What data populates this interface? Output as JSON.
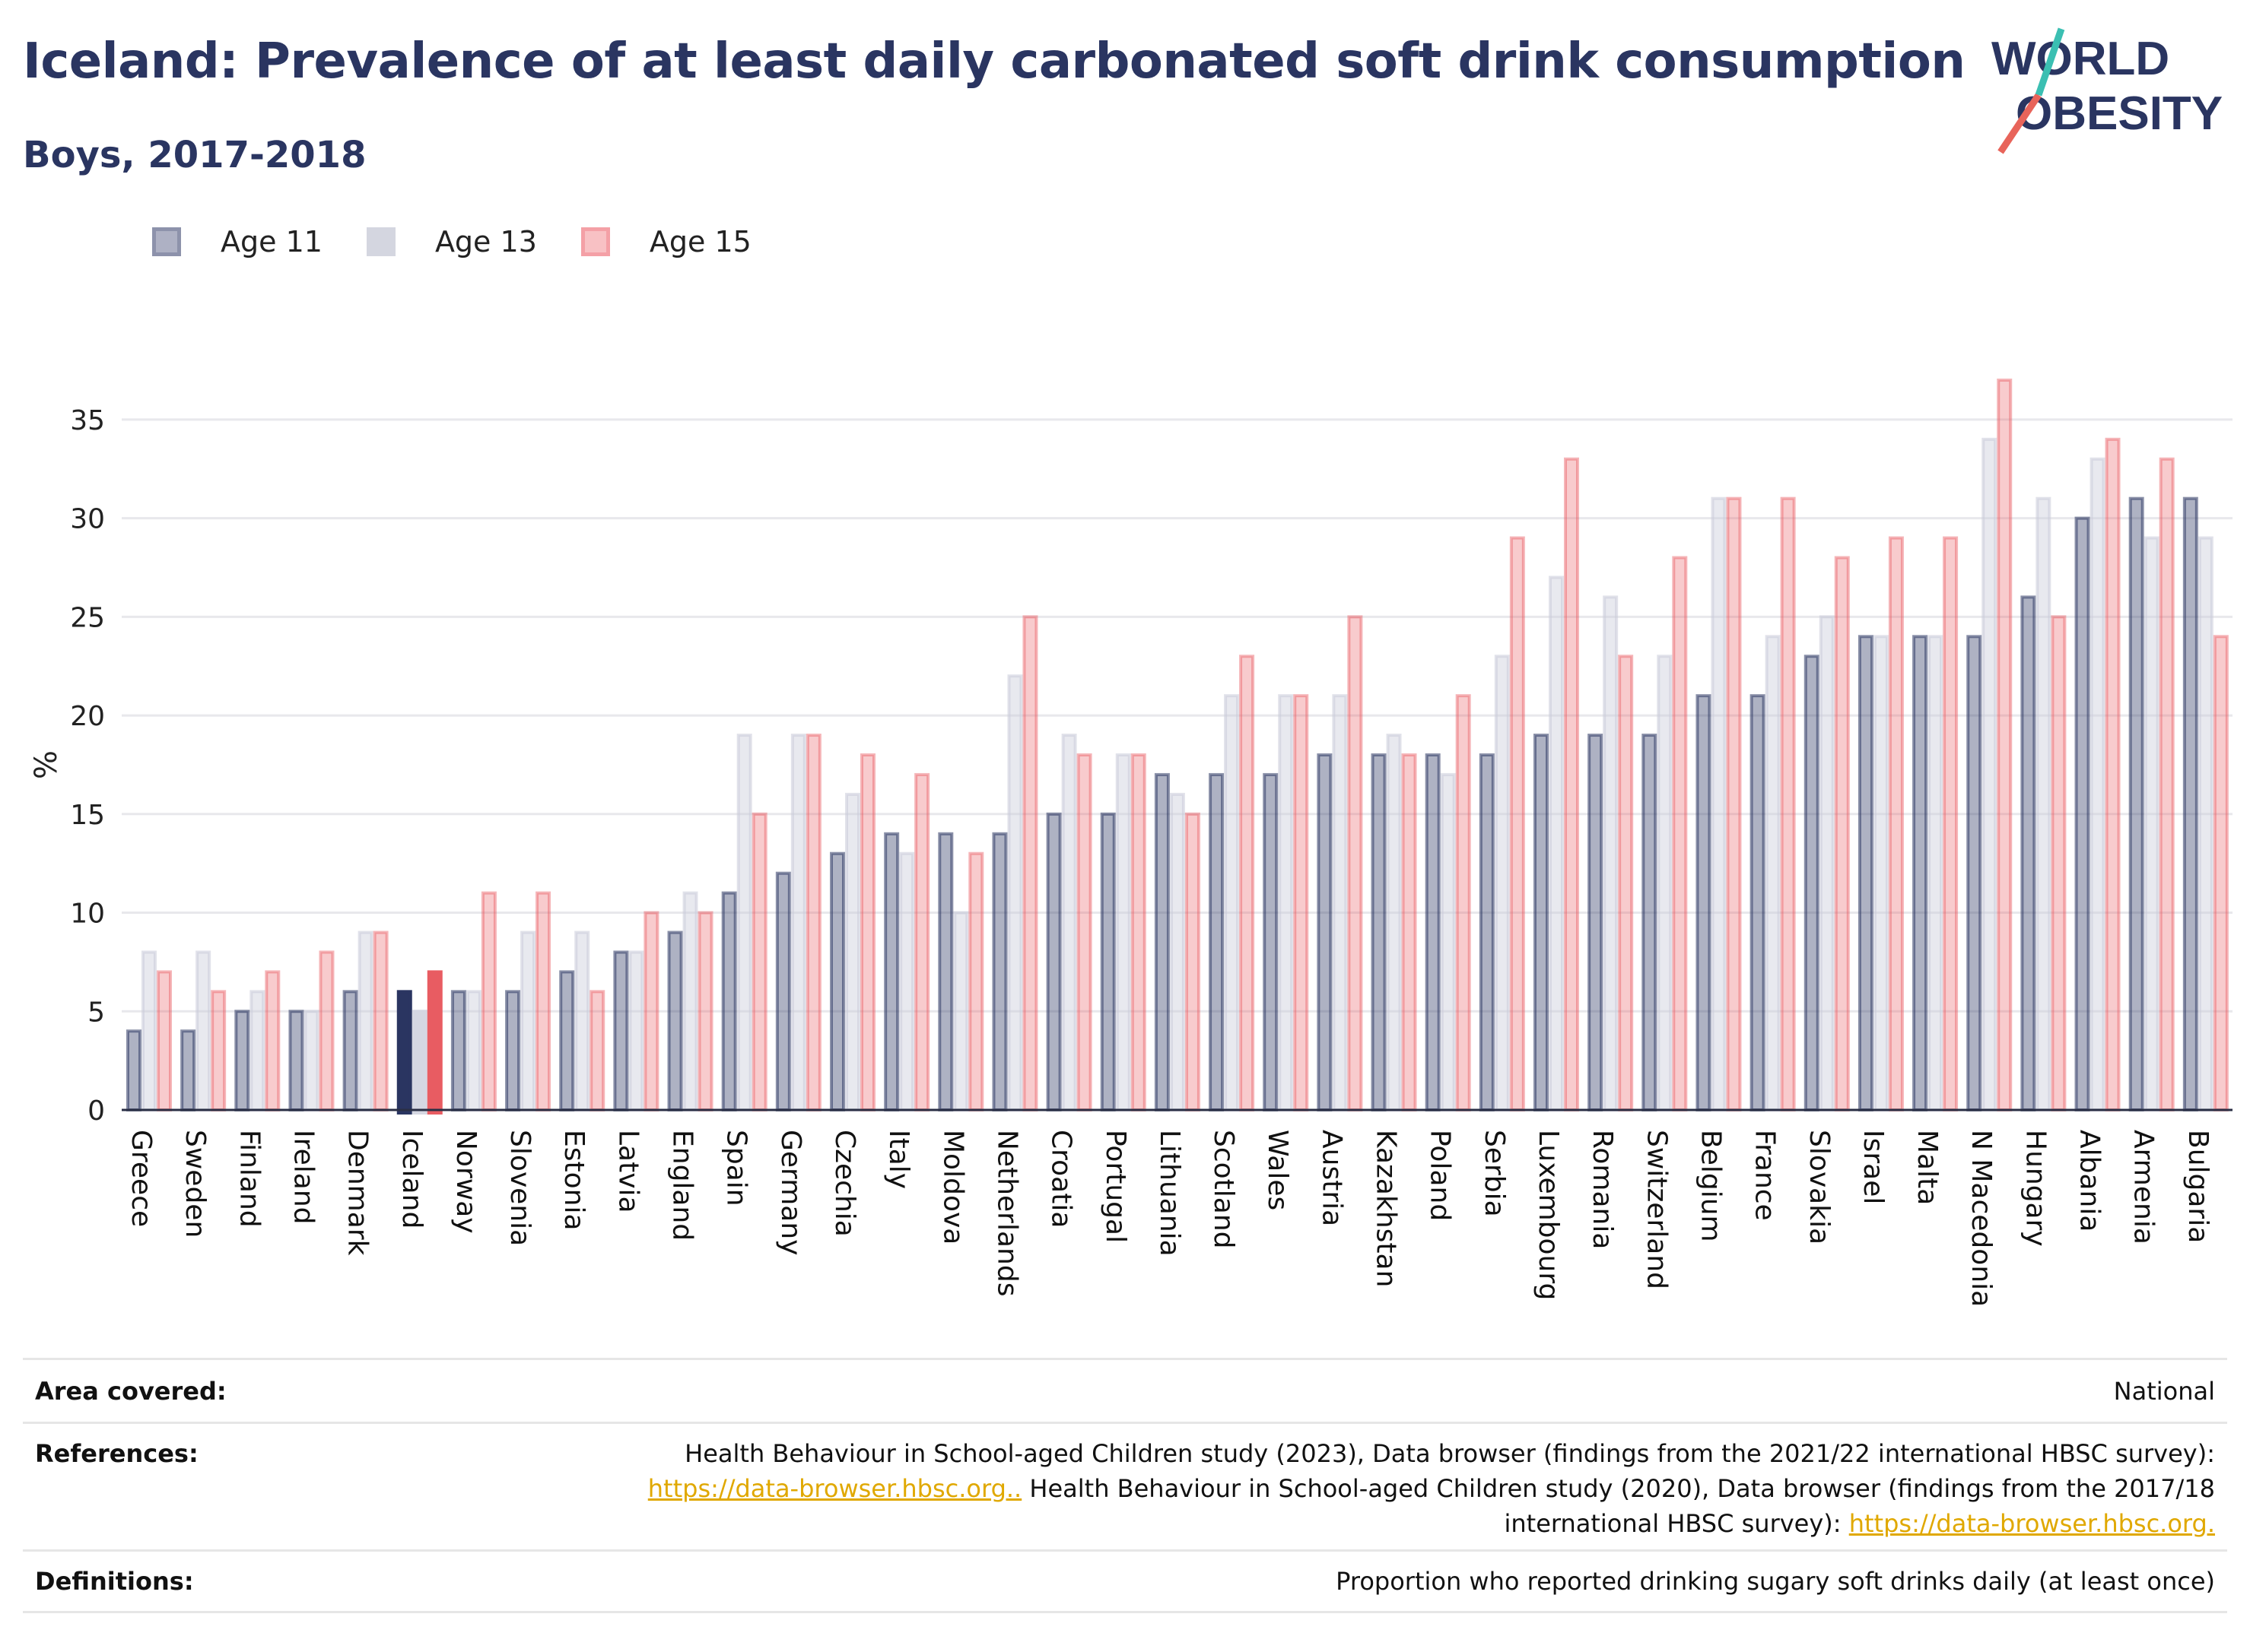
{
  "header": {
    "title": "Iceland: Prevalence of at least daily carbonated soft drink consumption",
    "subtitle": "Boys, 2017-2018"
  },
  "logo": {
    "line1": "WORLD",
    "line2": "OBESITY"
  },
  "colors": {
    "age11": "#2a3561",
    "age13": "#c8cad8",
    "age15": "#e85c62",
    "title": "#2a3561",
    "link": "#e0a800"
  },
  "legend": [
    {
      "label": "Age 11",
      "color": "#8d92ab"
    },
    {
      "label": "Age 13",
      "color": "#c8cad8"
    },
    {
      "label": "Age 15",
      "color": "#f4a0a6"
    }
  ],
  "chart_data": {
    "type": "bar",
    "title": "Iceland: Prevalence of at least daily carbonated soft drink consumption",
    "subtitle": "Boys, 2017-2018",
    "xlabel": "",
    "ylabel": "%",
    "ylim": [
      0,
      37
    ],
    "yticks": [
      0,
      5,
      10,
      15,
      20,
      25,
      30,
      35
    ],
    "grid": true,
    "legend_position": "top-left",
    "highlight": "Iceland",
    "categories": [
      "Greece",
      "Sweden",
      "Finland",
      "Ireland",
      "Denmark",
      "Iceland",
      "Norway",
      "Slovenia",
      "Estonia",
      "Latvia",
      "England",
      "Spain",
      "Germany",
      "Czechia",
      "Italy",
      "Moldova",
      "Netherlands",
      "Croatia",
      "Portugal",
      "Lithuania",
      "Scotland",
      "Wales",
      "Austria",
      "Kazakhstan",
      "Poland",
      "Serbia",
      "Luxembourg",
      "Romania",
      "Switzerland",
      "Belgium",
      "France",
      "Slovakia",
      "Israel",
      "Malta",
      "N Macedonia",
      "Hungary",
      "Albania",
      "Armenia",
      "Bulgaria"
    ],
    "series": [
      {
        "name": "Age 11",
        "values": [
          4,
          4,
          5,
          5,
          6,
          6,
          6,
          6,
          7,
          8,
          9,
          11,
          12,
          13,
          14,
          14,
          14,
          15,
          15,
          17,
          17,
          17,
          18,
          18,
          18,
          18,
          19,
          19,
          19,
          21,
          21,
          23,
          24,
          24,
          24,
          26,
          30,
          31,
          31
        ]
      },
      {
        "name": "Age 13",
        "values": [
          8,
          8,
          6,
          5,
          9,
          5,
          6,
          9,
          9,
          8,
          11,
          19,
          19,
          16,
          13,
          10,
          22,
          19,
          18,
          16,
          21,
          21,
          21,
          19,
          17,
          23,
          27,
          26,
          23,
          31,
          24,
          25,
          24,
          24,
          34,
          31,
          33,
          29,
          29
        ]
      },
      {
        "name": "Age 15",
        "values": [
          7,
          6,
          7,
          8,
          9,
          7,
          11,
          11,
          6,
          10,
          10,
          15,
          19,
          18,
          17,
          13,
          25,
          18,
          18,
          15,
          23,
          21,
          25,
          18,
          21,
          29,
          33,
          23,
          28,
          31,
          31,
          28,
          29,
          29,
          37,
          25,
          34,
          33,
          24
        ]
      }
    ]
  },
  "footer": {
    "area_label": "Area covered:",
    "area_value": "National",
    "references_label": "References:",
    "ref_text1": "Health Behaviour in School-aged Children study (2023), Data browser (findings from the 2021/22 international HBSC survey):",
    "ref_link1": "https://data-browser.hbsc.org..",
    "ref_text2": " Health Behaviour in School-aged Children study (2020), Data browser (findings from the 2017/18",
    "ref_text3": "international HBSC survey): ",
    "ref_link2": "https://data-browser.hbsc.org.",
    "definitions_label": "Definitions:",
    "definitions_value": "Proportion who reported drinking sugary soft drinks daily (at least once)"
  }
}
